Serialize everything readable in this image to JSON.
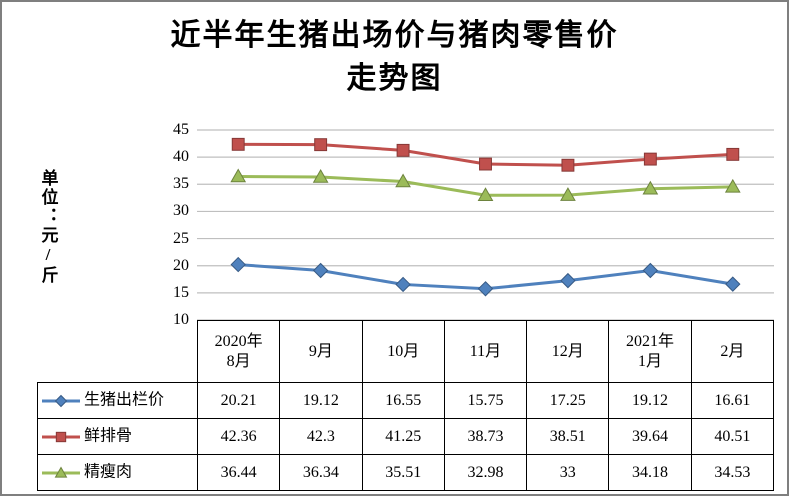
{
  "title": {
    "line1": "近半年生猪出场价与猪肉零售价",
    "line2": "走势图"
  },
  "y_axis_label": "单位：元/斤",
  "colors": {
    "background": "#FFFFFF",
    "text": "#000000",
    "frame_border": "#7F7F7F",
    "table_border": "#000000",
    "gridline": "#BFBFBF",
    "series_blue": "#4F81BD",
    "series_red": "#C0504D",
    "series_green": "#9BBB59"
  },
  "chart_data": {
    "type": "line",
    "title": "近半年生猪出场价与猪肉零售价走势图",
    "xlabel": "",
    "ylabel": "单位：元/斤",
    "ylim": [
      10,
      45
    ],
    "ytick_step": 5,
    "grid": true,
    "legend_position": "table-rows-left",
    "categories": [
      "2020年\n8月",
      "9月",
      "10月",
      "11月",
      "12月",
      "2021年\n1月",
      "2月"
    ],
    "series": [
      {
        "name": "生猪出栏价",
        "marker": "diamond",
        "color": "#4F81BD",
        "values": [
          20.21,
          19.12,
          16.55,
          15.75,
          17.25,
          19.12,
          16.61
        ]
      },
      {
        "name": "鲜排骨",
        "marker": "square",
        "color": "#C0504D",
        "values": [
          42.36,
          42.3,
          41.25,
          38.73,
          38.51,
          39.64,
          40.51
        ]
      },
      {
        "name": "精瘦肉",
        "marker": "triangle",
        "color": "#9BBB59",
        "values": [
          36.44,
          36.34,
          35.51,
          32.98,
          33,
          34.18,
          34.53
        ]
      }
    ]
  }
}
